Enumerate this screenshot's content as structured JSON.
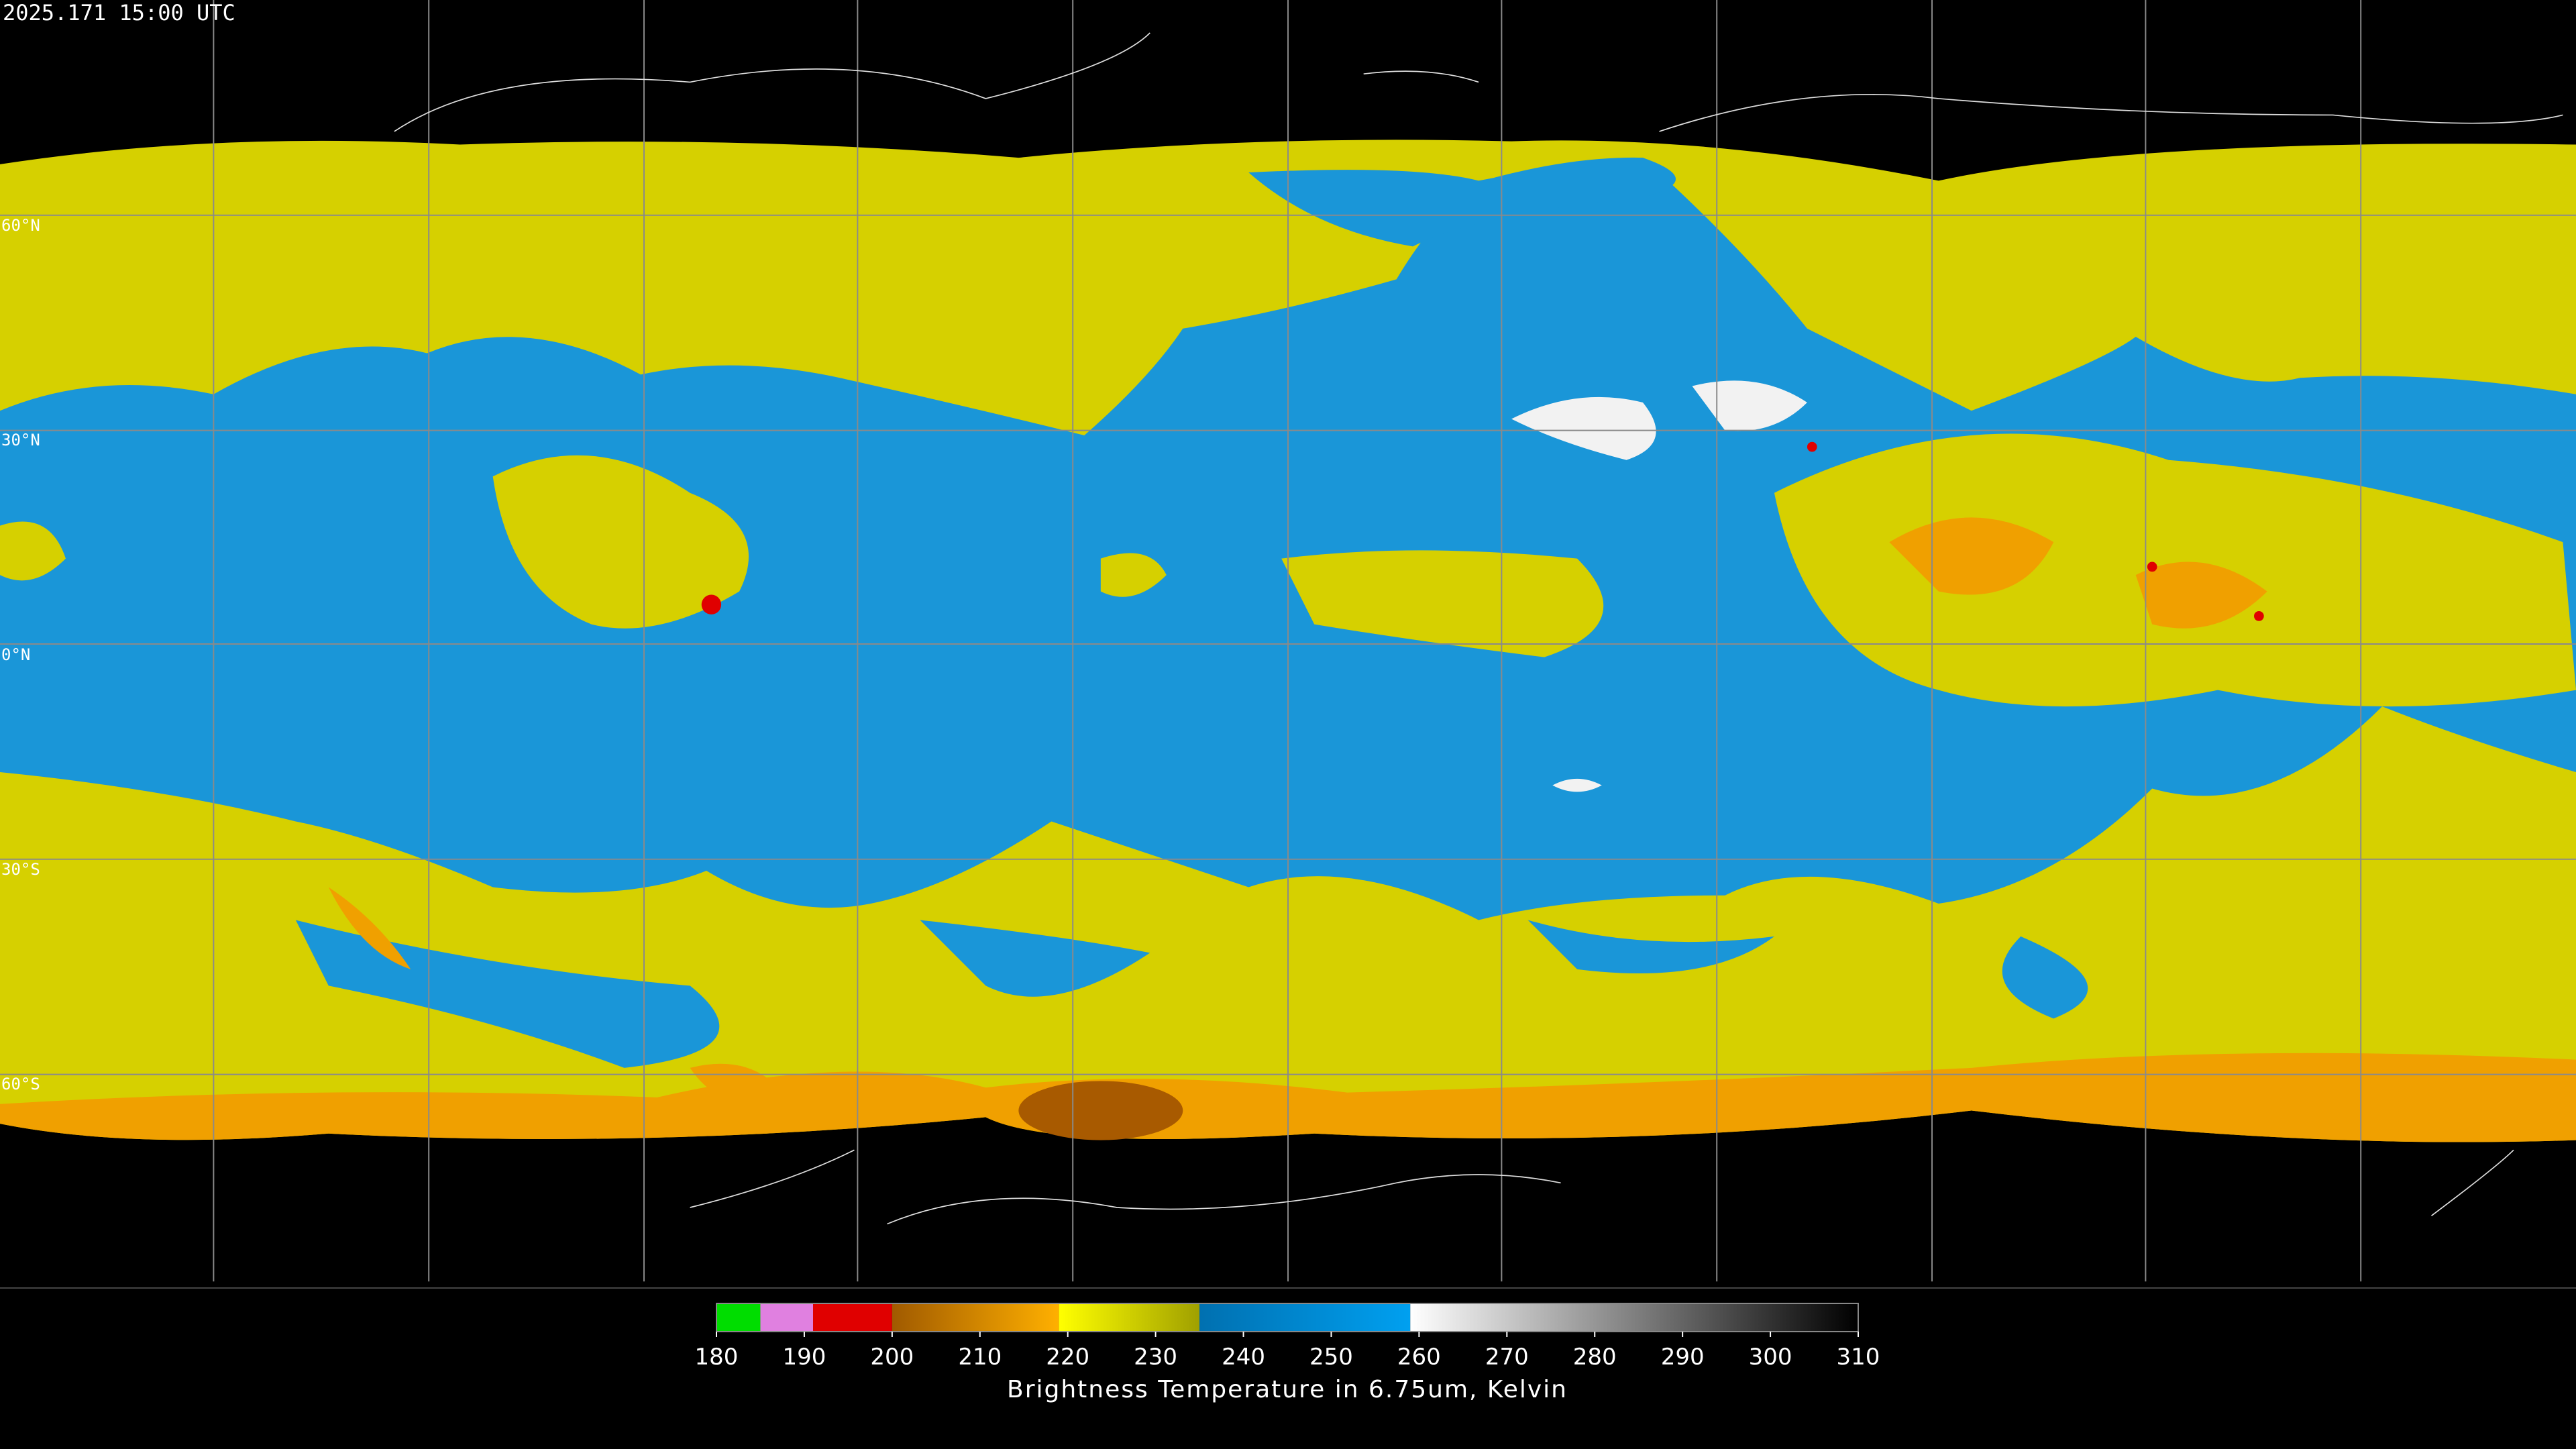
{
  "header": {
    "timestamp": "2025.171 15:00 UTC"
  },
  "map": {
    "latitude_labels": [
      "60°N",
      "30°N",
      "0°N",
      "30°S",
      "60°S"
    ]
  },
  "colorbar": {
    "label": "Brightness Temperature in 6.75um, Kelvin",
    "ticks": [
      180,
      190,
      200,
      210,
      220,
      230,
      240,
      250,
      260,
      270,
      280,
      290,
      300,
      310
    ],
    "segments": [
      {
        "from": 180,
        "to": 185,
        "colors": [
          "#00dd00",
          "#00dd00"
        ]
      },
      {
        "from": 185,
        "to": 191,
        "colors": [
          "#e080e0",
          "#e080e0"
        ]
      },
      {
        "from": 191,
        "to": 200,
        "colors": [
          "#e00000",
          "#e00000"
        ]
      },
      {
        "from": 200,
        "to": 219,
        "colors": [
          "#a05a00",
          "#ffb000"
        ]
      },
      {
        "from": 219,
        "to": 235,
        "colors": [
          "#ffff00",
          "#a0a000"
        ]
      },
      {
        "from": 235,
        "to": 259,
        "colors": [
          "#0070b0",
          "#00a0f0"
        ]
      },
      {
        "from": 259,
        "to": 310,
        "colors": [
          "#ffffff",
          "#000000"
        ]
      }
    ]
  }
}
